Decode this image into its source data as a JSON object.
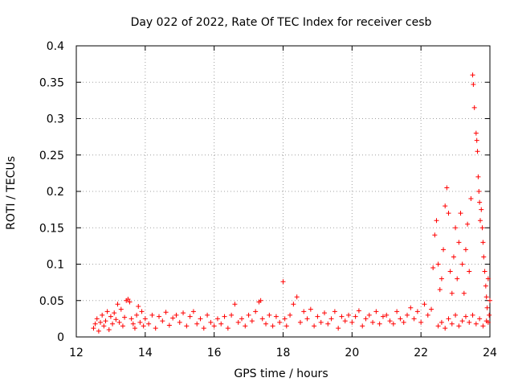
{
  "chart_data": {
    "type": "scatter",
    "title": "Day 022 of 2022, Rate Of TEC Index for receiver cesb",
    "xlabel": "GPS time / hours",
    "ylabel": "ROTI / TECUs",
    "xlim": [
      12,
      24
    ],
    "ylim": [
      0,
      0.4
    ],
    "xticks": [
      12,
      14,
      16,
      18,
      20,
      22,
      24
    ],
    "yticks": [
      0,
      0.05,
      0.1,
      0.15,
      0.2,
      0.25,
      0.3,
      0.35,
      0.4
    ],
    "xtick_labels": [
      "12",
      "14",
      "16",
      "18",
      "20",
      "22",
      "24"
    ],
    "ytick_labels": [
      "0",
      "0.05",
      "0.1",
      "0.15",
      "0.2",
      "0.25",
      "0.3",
      "0.35",
      "0.4"
    ],
    "grid": true,
    "marker": "+",
    "color": "#ff0000",
    "series": [
      {
        "name": "ROTI",
        "note": "dense band 0.005–0.03 TECU from 12.5 h to 24 h; representative sampled points below",
        "points": [
          [
            12.5,
            0.012
          ],
          [
            12.55,
            0.018
          ],
          [
            12.6,
            0.025
          ],
          [
            12.65,
            0.008
          ],
          [
            12.7,
            0.02
          ],
          [
            12.75,
            0.03
          ],
          [
            12.8,
            0.015
          ],
          [
            12.85,
            0.022
          ],
          [
            12.9,
            0.035
          ],
          [
            12.95,
            0.01
          ],
          [
            13.0,
            0.028
          ],
          [
            13.05,
            0.018
          ],
          [
            13.1,
            0.033
          ],
          [
            13.15,
            0.024
          ],
          [
            13.2,
            0.045
          ],
          [
            13.25,
            0.02
          ],
          [
            13.3,
            0.038
          ],
          [
            13.35,
            0.015
          ],
          [
            13.4,
            0.027
          ],
          [
            13.45,
            0.05
          ],
          [
            13.5,
            0.052
          ],
          [
            13.55,
            0.048
          ],
          [
            13.6,
            0.025
          ],
          [
            13.65,
            0.018
          ],
          [
            13.7,
            0.012
          ],
          [
            13.75,
            0.03
          ],
          [
            13.8,
            0.042
          ],
          [
            13.85,
            0.02
          ],
          [
            13.9,
            0.035
          ],
          [
            13.95,
            0.015
          ],
          [
            14.0,
            0.025
          ],
          [
            14.1,
            0.018
          ],
          [
            14.2,
            0.03
          ],
          [
            14.3,
            0.012
          ],
          [
            14.4,
            0.028
          ],
          [
            14.5,
            0.022
          ],
          [
            14.6,
            0.034
          ],
          [
            14.7,
            0.016
          ],
          [
            14.8,
            0.026
          ],
          [
            14.9,
            0.03
          ],
          [
            15.0,
            0.02
          ],
          [
            15.1,
            0.033
          ],
          [
            15.2,
            0.015
          ],
          [
            15.3,
            0.028
          ],
          [
            15.4,
            0.035
          ],
          [
            15.5,
            0.018
          ],
          [
            15.6,
            0.025
          ],
          [
            15.7,
            0.012
          ],
          [
            15.8,
            0.03
          ],
          [
            15.9,
            0.02
          ],
          [
            16.0,
            0.015
          ],
          [
            16.1,
            0.025
          ],
          [
            16.2,
            0.018
          ],
          [
            16.3,
            0.028
          ],
          [
            16.4,
            0.012
          ],
          [
            16.5,
            0.03
          ],
          [
            16.6,
            0.045
          ],
          [
            16.7,
            0.02
          ],
          [
            16.8,
            0.025
          ],
          [
            16.9,
            0.015
          ],
          [
            17.0,
            0.03
          ],
          [
            17.1,
            0.022
          ],
          [
            17.2,
            0.035
          ],
          [
            17.3,
            0.048
          ],
          [
            17.35,
            0.05
          ],
          [
            17.4,
            0.025
          ],
          [
            17.5,
            0.018
          ],
          [
            17.6,
            0.03
          ],
          [
            17.7,
            0.015
          ],
          [
            17.8,
            0.028
          ],
          [
            17.9,
            0.02
          ],
          [
            18.0,
            0.076
          ],
          [
            18.05,
            0.025
          ],
          [
            18.1,
            0.015
          ],
          [
            18.2,
            0.03
          ],
          [
            18.3,
            0.045
          ],
          [
            18.4,
            0.055
          ],
          [
            18.5,
            0.02
          ],
          [
            18.6,
            0.035
          ],
          [
            18.7,
            0.025
          ],
          [
            18.8,
            0.038
          ],
          [
            18.9,
            0.015
          ],
          [
            19.0,
            0.028
          ],
          [
            19.1,
            0.02
          ],
          [
            19.2,
            0.033
          ],
          [
            19.3,
            0.018
          ],
          [
            19.4,
            0.025
          ],
          [
            19.5,
            0.035
          ],
          [
            19.6,
            0.012
          ],
          [
            19.7,
            0.028
          ],
          [
            19.8,
            0.022
          ],
          [
            19.9,
            0.03
          ],
          [
            20.0,
            0.02
          ],
          [
            20.1,
            0.028
          ],
          [
            20.2,
            0.036
          ],
          [
            20.3,
            0.015
          ],
          [
            20.4,
            0.025
          ],
          [
            20.5,
            0.03
          ],
          [
            20.6,
            0.02
          ],
          [
            20.7,
            0.035
          ],
          [
            20.8,
            0.018
          ],
          [
            20.9,
            0.028
          ],
          [
            21.0,
            0.03
          ],
          [
            21.1,
            0.022
          ],
          [
            21.2,
            0.018
          ],
          [
            21.3,
            0.035
          ],
          [
            21.4,
            0.025
          ],
          [
            21.5,
            0.02
          ],
          [
            21.6,
            0.03
          ],
          [
            21.7,
            0.04
          ],
          [
            21.8,
            0.025
          ],
          [
            21.9,
            0.035
          ],
          [
            22.0,
            0.02
          ],
          [
            22.1,
            0.045
          ],
          [
            22.2,
            0.03
          ],
          [
            22.3,
            0.038
          ],
          [
            22.35,
            0.095
          ],
          [
            22.4,
            0.14
          ],
          [
            22.45,
            0.16
          ],
          [
            22.5,
            0.1
          ],
          [
            22.55,
            0.065
          ],
          [
            22.6,
            0.08
          ],
          [
            22.65,
            0.12
          ],
          [
            22.7,
            0.18
          ],
          [
            22.75,
            0.205
          ],
          [
            22.8,
            0.17
          ],
          [
            22.85,
            0.09
          ],
          [
            22.9,
            0.06
          ],
          [
            22.95,
            0.11
          ],
          [
            23.0,
            0.15
          ],
          [
            23.05,
            0.08
          ],
          [
            23.1,
            0.13
          ],
          [
            23.15,
            0.17
          ],
          [
            23.2,
            0.1
          ],
          [
            23.25,
            0.06
          ],
          [
            23.3,
            0.12
          ],
          [
            23.35,
            0.155
          ],
          [
            23.4,
            0.09
          ],
          [
            23.45,
            0.19
          ],
          [
            23.5,
            0.36
          ],
          [
            23.52,
            0.347
          ],
          [
            23.55,
            0.315
          ],
          [
            23.6,
            0.28
          ],
          [
            23.62,
            0.27
          ],
          [
            23.64,
            0.255
          ],
          [
            23.66,
            0.22
          ],
          [
            23.68,
            0.2
          ],
          [
            23.7,
            0.185
          ],
          [
            23.72,
            0.16
          ],
          [
            23.75,
            0.175
          ],
          [
            23.78,
            0.15
          ],
          [
            23.8,
            0.13
          ],
          [
            23.82,
            0.11
          ],
          [
            23.85,
            0.09
          ],
          [
            23.88,
            0.07
          ],
          [
            23.9,
            0.055
          ],
          [
            23.92,
            0.04
          ],
          [
            23.95,
            0.08
          ],
          [
            23.98,
            0.03
          ],
          [
            24.0,
            0.05
          ],
          [
            22.5,
            0.015
          ],
          [
            22.6,
            0.02
          ],
          [
            22.7,
            0.012
          ],
          [
            22.8,
            0.025
          ],
          [
            22.9,
            0.018
          ],
          [
            23.0,
            0.03
          ],
          [
            23.1,
            0.015
          ],
          [
            23.2,
            0.022
          ],
          [
            23.3,
            0.028
          ],
          [
            23.4,
            0.02
          ],
          [
            23.5,
            0.03
          ],
          [
            23.6,
            0.018
          ],
          [
            23.7,
            0.025
          ],
          [
            23.8,
            0.015
          ],
          [
            23.9,
            0.022
          ],
          [
            23.95,
            0.02
          ]
        ]
      }
    ]
  }
}
